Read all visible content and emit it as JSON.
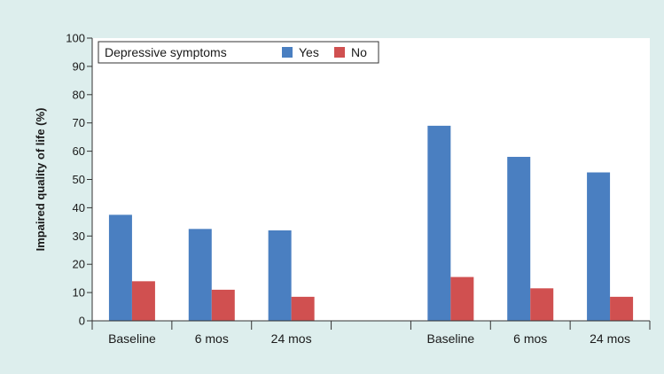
{
  "chart_data": {
    "type": "bar",
    "title": "",
    "xlabel": "",
    "ylabel": "Impaired quality of life (%)",
    "ylim": [
      0,
      100
    ],
    "yticks": [
      0,
      10,
      20,
      30,
      40,
      50,
      60,
      70,
      80,
      90,
      100
    ],
    "grid": false,
    "legend_position": "top-left",
    "legend_title": "Depressive symptoms",
    "categories": [
      "Baseline",
      "6 mos",
      "24 mos",
      "",
      "Baseline",
      "6 mos",
      "24 mos"
    ],
    "series": [
      {
        "name": "Yes",
        "color": "#4a7fc1",
        "values": [
          37.5,
          32.5,
          32,
          null,
          69,
          58,
          52.5
        ]
      },
      {
        "name": "No",
        "color": "#d05050",
        "values": [
          14,
          11,
          8.5,
          null,
          15.5,
          11.5,
          8.5
        ]
      }
    ]
  }
}
